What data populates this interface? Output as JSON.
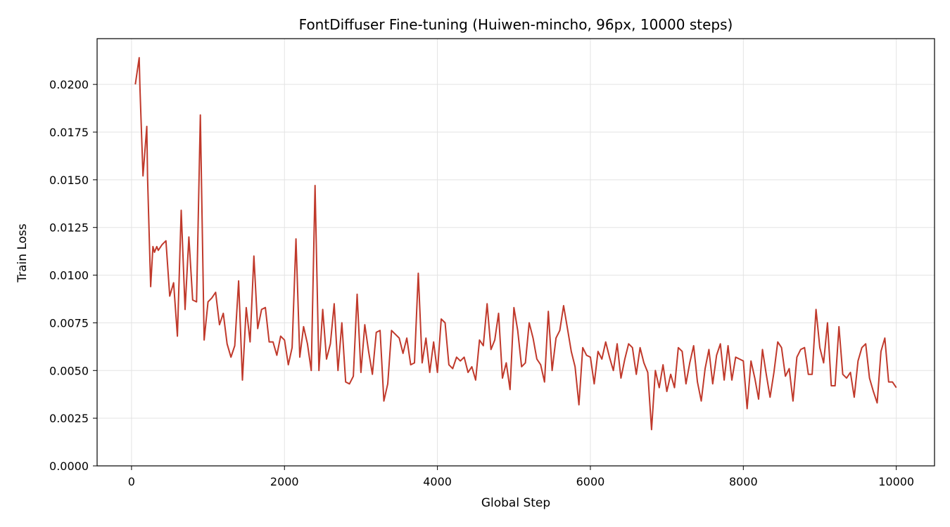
{
  "chart_data": {
    "type": "line",
    "title": "FontDiffuser Fine-tuning (Huiwen-mincho, 96px, 10000 steps)",
    "xlabel": "Global Step",
    "ylabel": "Train Loss",
    "xlim": [
      -450,
      10500
    ],
    "ylim": [
      0,
      0.0224
    ],
    "xticks": [
      0,
      2000,
      4000,
      6000,
      8000,
      10000
    ],
    "xtick_labels": [
      "0",
      "2000",
      "4000",
      "6000",
      "8000",
      "10000"
    ],
    "yticks": [
      0,
      0.0025,
      0.005,
      0.0075,
      0.01,
      0.0125,
      0.015,
      0.0175,
      0.02
    ],
    "ytick_labels": [
      "0.0000",
      "0.0025",
      "0.0050",
      "0.0075",
      "0.0100",
      "0.0125",
      "0.0150",
      "0.0175",
      "0.0200"
    ],
    "grid": true,
    "line_color": "#c0392b",
    "series": [
      {
        "x": [
          50,
          100,
          110,
          150,
          200,
          210,
          250,
          280,
          300,
          330,
          350,
          400,
          450,
          500,
          550,
          600,
          650,
          700,
          750,
          800,
          850,
          900,
          950,
          1000,
          1050,
          1100,
          1150,
          1200,
          1250,
          1300,
          1350,
          1400,
          1450,
          1500,
          1550,
          1600,
          1650,
          1700,
          1750,
          1800,
          1850,
          1900,
          1950,
          2000,
          2050,
          2100,
          2150,
          2200,
          2250,
          2300,
          2350,
          2400,
          2450,
          2500,
          2550,
          2600,
          2650,
          2700,
          2750,
          2800,
          2850,
          2900,
          2950,
          3000,
          3050,
          3100,
          3150,
          3200,
          3250,
          3300,
          3350,
          3400,
          3450,
          3500,
          3550,
          3600,
          3650,
          3700,
          3750,
          3800,
          3850,
          3900,
          3950,
          4000,
          4050,
          4100,
          4150,
          4200,
          4250,
          4300,
          4350,
          4400,
          4450,
          4500,
          4550,
          4600,
          4650,
          4700,
          4750,
          4800,
          4850,
          4900,
          4950,
          5000,
          5050,
          5100,
          5150,
          5200,
          5250,
          5300,
          5350,
          5400,
          5450,
          5500,
          5550,
          5600,
          5650,
          5700,
          5750,
          5800,
          5850,
          5900,
          5950,
          6000,
          6050,
          6100,
          6150,
          6200,
          6250,
          6300,
          6350,
          6400,
          6450,
          6500,
          6550,
          6600,
          6650,
          6700,
          6750,
          6800,
          6850,
          6900,
          6950,
          7000,
          7050,
          7100,
          7150,
          7200,
          7250,
          7300,
          7350,
          7400,
          7450,
          7500,
          7550,
          7600,
          7650,
          7700,
          7750,
          7800,
          7850,
          7900,
          7950,
          8000,
          8050,
          8100,
          8150,
          8200,
          8250,
          8300,
          8350,
          8400,
          8450,
          8500,
          8550,
          8600,
          8650,
          8700,
          8750,
          8800,
          8850,
          8900,
          8950,
          9000,
          9050,
          9100,
          9150,
          9200,
          9250,
          9300,
          9350,
          9400,
          9450,
          9500,
          9550,
          9600,
          9650,
          9700,
          9750,
          9800,
          9850,
          9900,
          9950,
          10000
        ],
        "values": [
          0.02,
          0.0214,
          0.0198,
          0.0152,
          0.0178,
          0.0151,
          0.0094,
          0.0115,
          0.0112,
          0.0115,
          0.0113,
          0.0116,
          0.0118,
          0.0089,
          0.0096,
          0.0068,
          0.0134,
          0.0082,
          0.012,
          0.0087,
          0.0086,
          0.0184,
          0.0066,
          0.0086,
          0.0088,
          0.0091,
          0.0074,
          0.008,
          0.0064,
          0.0057,
          0.0063,
          0.0097,
          0.0045,
          0.0083,
          0.0065,
          0.011,
          0.0072,
          0.0082,
          0.0083,
          0.0065,
          0.0065,
          0.0058,
          0.0068,
          0.0066,
          0.0053,
          0.0062,
          0.0119,
          0.0057,
          0.0073,
          0.0064,
          0.005,
          0.0147,
          0.005,
          0.0082,
          0.0056,
          0.0064,
          0.0085,
          0.005,
          0.0075,
          0.0044,
          0.0043,
          0.0047,
          0.009,
          0.0049,
          0.0074,
          0.006,
          0.0048,
          0.007,
          0.0071,
          0.0034,
          0.0043,
          0.0071,
          0.0069,
          0.0067,
          0.0059,
          0.0067,
          0.0053,
          0.0054,
          0.0101,
          0.0054,
          0.0067,
          0.0049,
          0.0065,
          0.0049,
          0.0077,
          0.0075,
          0.0053,
          0.0051,
          0.0057,
          0.0055,
          0.0057,
          0.0049,
          0.0052,
          0.0045,
          0.0066,
          0.0063,
          0.0085,
          0.0061,
          0.0066,
          0.008,
          0.0046,
          0.0054,
          0.004,
          0.0083,
          0.0071,
          0.0052,
          0.0054,
          0.0075,
          0.0067,
          0.0056,
          0.0053,
          0.0044,
          0.0081,
          0.005,
          0.0067,
          0.0071,
          0.0084,
          0.0072,
          0.006,
          0.0052,
          0.0032,
          0.0062,
          0.0058,
          0.0057,
          0.0043,
          0.006,
          0.0056,
          0.0065,
          0.0057,
          0.005,
          0.0064,
          0.0046,
          0.0056,
          0.0064,
          0.0062,
          0.0048,
          0.0062,
          0.0054,
          0.0049,
          0.0019,
          0.005,
          0.0041,
          0.0053,
          0.0039,
          0.0048,
          0.0041,
          0.0062,
          0.006,
          0.0043,
          0.0054,
          0.0063,
          0.0044,
          0.0034,
          0.0051,
          0.0061,
          0.0043,
          0.0058,
          0.0064,
          0.0045,
          0.0063,
          0.0045,
          0.0057,
          0.0056,
          0.0055,
          0.003,
          0.0055,
          0.0046,
          0.0035,
          0.0061,
          0.0048,
          0.0036,
          0.0049,
          0.0065,
          0.0062,
          0.0047,
          0.0051,
          0.0034,
          0.0057,
          0.0061,
          0.0062,
          0.0048,
          0.0048,
          0.0082,
          0.0062,
          0.0054,
          0.0075,
          0.0042,
          0.0042,
          0.0073,
          0.0048,
          0.0046,
          0.0049,
          0.0036,
          0.0055,
          0.0062,
          0.0064,
          0.0046,
          0.0039,
          0.0033,
          0.006,
          0.0067,
          0.0044,
          0.0044,
          0.0041
        ]
      }
    ]
  }
}
